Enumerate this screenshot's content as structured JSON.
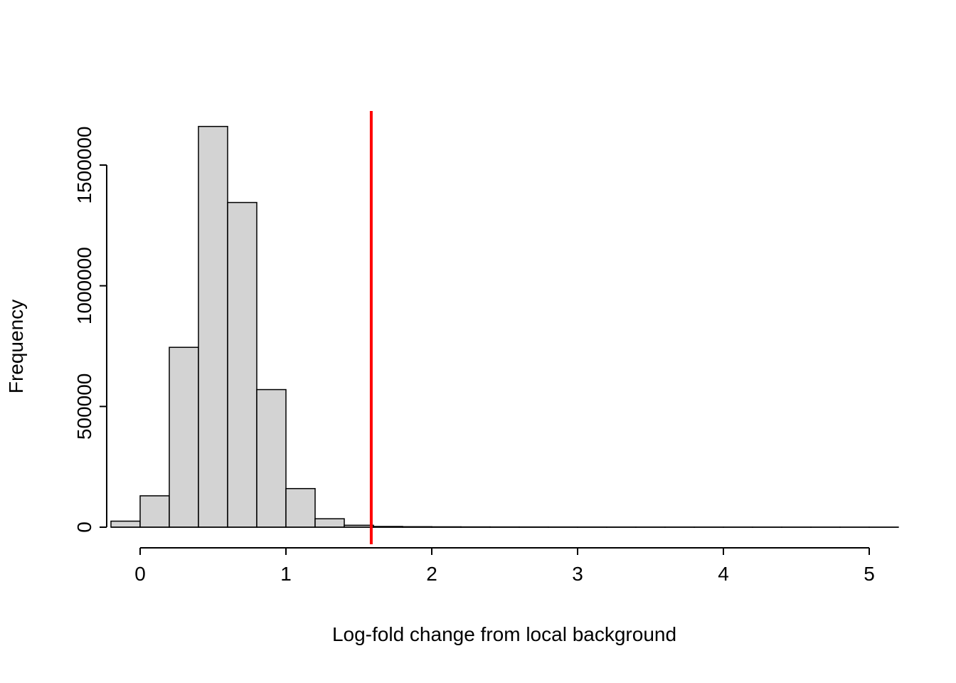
{
  "chart_data": {
    "type": "bar",
    "subtype": "histogram",
    "title": "",
    "xlabel": "Log-fold change from local background",
    "ylabel": "Frequency",
    "bin_start": -0.2,
    "bin_width": 0.2,
    "counts": [
      25000,
      130000,
      745000,
      1660000,
      1345000,
      570000,
      160000,
      35000,
      8000,
      3000,
      2000,
      1500,
      1200,
      1000,
      900,
      800,
      700,
      600,
      500,
      450,
      400,
      350,
      300,
      250,
      200,
      150,
      100
    ],
    "x_ticks": [
      0,
      1,
      2,
      3,
      4,
      5
    ],
    "x_tick_labels": [
      "0",
      "1",
      "2",
      "3",
      "4",
      "5"
    ],
    "y_ticks": [
      0,
      500000,
      1000000,
      1500000
    ],
    "y_tick_labels": [
      "0",
      "500000",
      "1000000",
      "1500000"
    ],
    "xlim": [
      -0.2,
      5.2
    ],
    "ylim": [
      0,
      1500000
    ],
    "grid": "off",
    "legend": "none",
    "threshold_line": {
      "x": 1.585,
      "color": "#FF0000"
    },
    "bar_fill": "#D3D3D3",
    "bar_stroke": "#000000",
    "axis_color": "#000000"
  }
}
